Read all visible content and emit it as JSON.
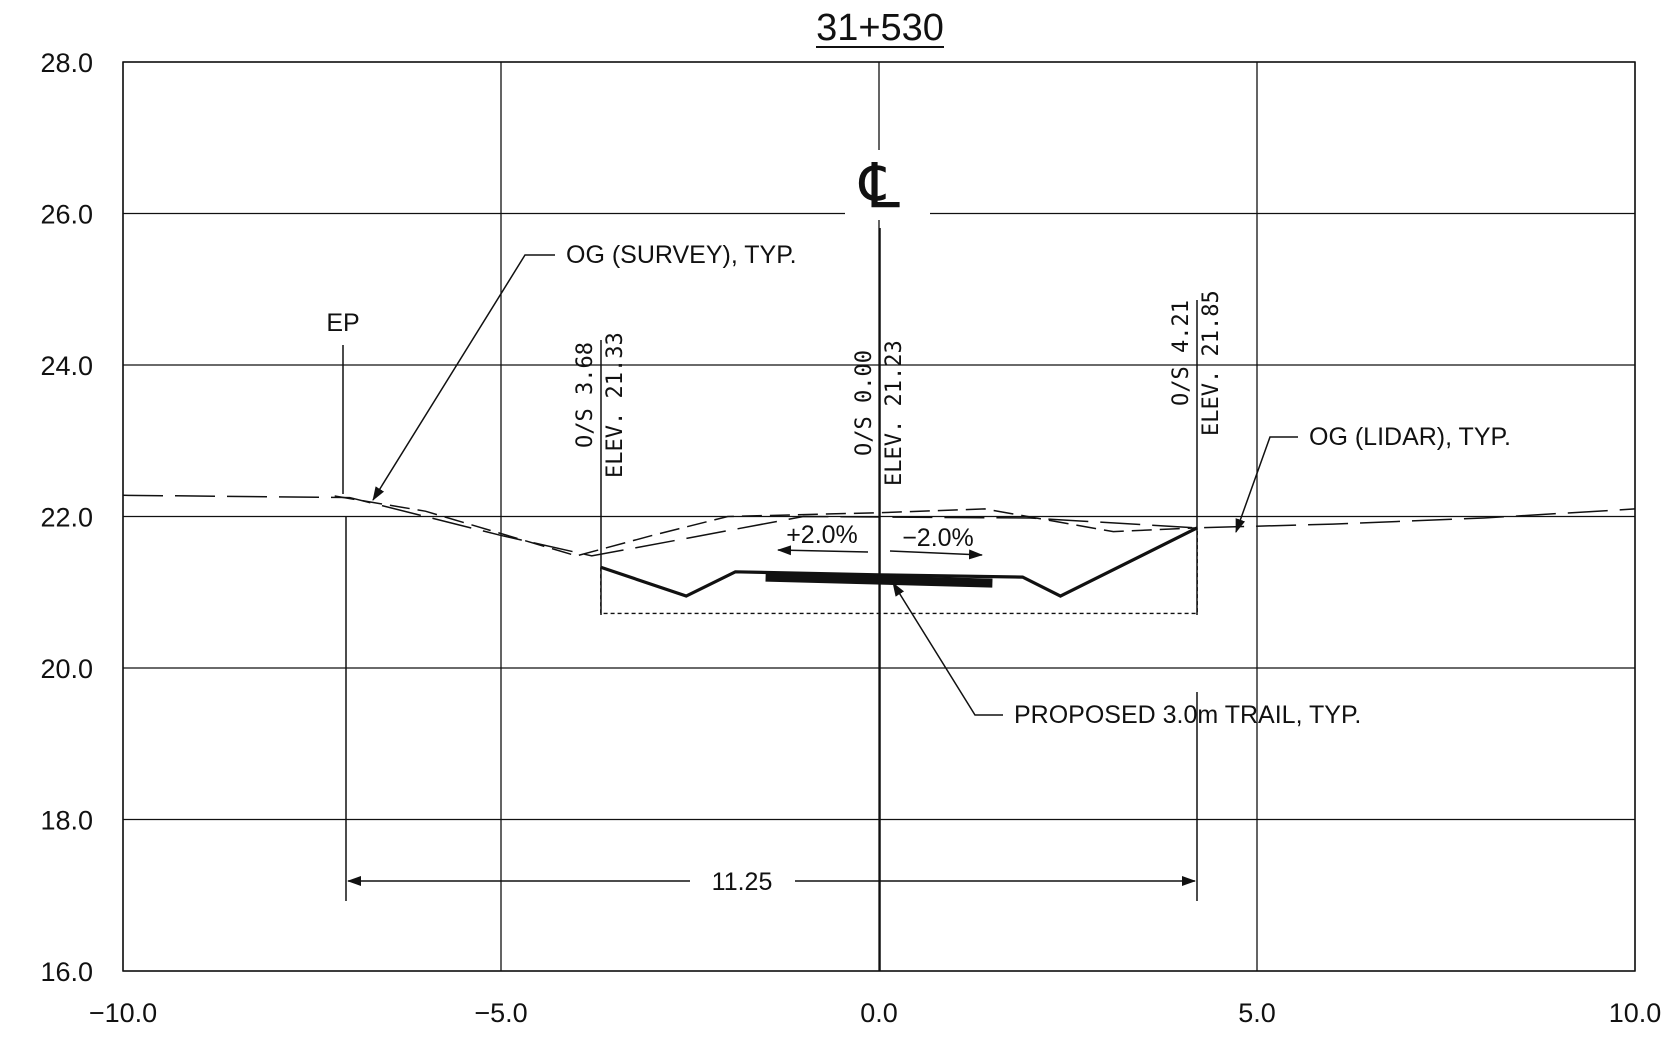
{
  "chart_data": {
    "type": "line",
    "title": "31+530",
    "xlabel": "",
    "ylabel": "",
    "xlim": [
      -10.0,
      10.0
    ],
    "ylim": [
      16.0,
      28.0
    ],
    "xticks": [
      "-10.0",
      "-5.0",
      "0.0",
      "5.0",
      "10.0"
    ],
    "yticks": [
      "16.0",
      "18.0",
      "20.0",
      "22.0",
      "24.0",
      "26.0",
      "28.0"
    ],
    "grid": true,
    "series": [
      {
        "name": "OG (SURVEY), TYP.",
        "style": "dashed",
        "x": [
          -7.2,
          -6.0,
          -4.0,
          -3.0,
          -2.0,
          0.0,
          1.4,
          3.1,
          4.2
        ],
        "y": [
          22.27,
          22.07,
          21.48,
          21.75,
          22.0,
          22.05,
          22.1,
          21.8,
          21.85
        ]
      },
      {
        "name": "OG (LIDAR), TYP.",
        "style": "long-dashed",
        "x": [
          -10.0,
          -7.0,
          -5.0,
          -3.8,
          -2.5,
          -1.0,
          2.0,
          4.2,
          6.0,
          8.0,
          10.0
        ],
        "y": [
          22.28,
          22.25,
          21.75,
          21.48,
          21.72,
          22.0,
          21.98,
          21.85,
          21.9,
          21.98,
          22.1
        ]
      },
      {
        "name": "PROPOSED 3.0m TRAIL, TYP.",
        "style": "solid",
        "x": [
          -3.68,
          -2.55,
          -1.9,
          0.0,
          1.9,
          2.4,
          4.21
        ],
        "y": [
          21.33,
          20.95,
          21.27,
          21.23,
          21.2,
          20.95,
          21.85
        ]
      }
    ],
    "trail_surface": {
      "x": [
        -1.5,
        1.5
      ],
      "y": [
        21.2,
        21.12
      ]
    },
    "excavation_limit": {
      "x": [
        -3.68,
        4.21
      ],
      "y_bottom": 20.72
    },
    "annotations": {
      "centerline": "℄",
      "ep": "EP",
      "og_survey": "OG (SURVEY), TYP.",
      "og_lidar": "OG (LIDAR), TYP.",
      "trail": "PROPOSED 3.0m TRAIL, TYP.",
      "slope_left": "+2.0%",
      "slope_right": "−2.0%",
      "dimension": "11.25",
      "offset_left": {
        "os": "O/S 3.68",
        "elev": "ELEV. 21.33"
      },
      "offset_center": {
        "os": "O/S 0.00",
        "elev": "ELEV. 21.23"
      },
      "offset_right": {
        "os": "O/S 4.21",
        "elev": "ELEV. 21.85"
      }
    }
  }
}
